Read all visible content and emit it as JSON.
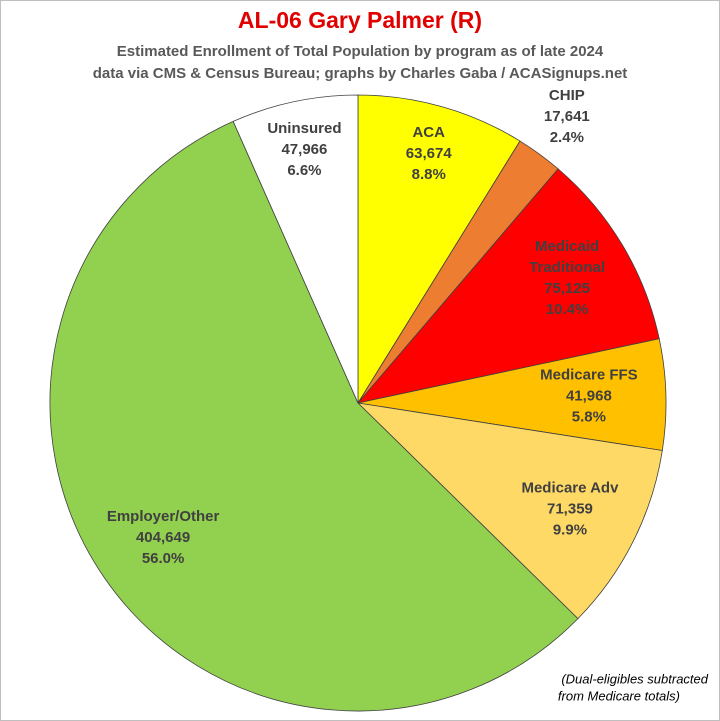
{
  "chart_data": {
    "type": "pie",
    "title": "AL-06 Gary Palmer (R)",
    "subtitle": [
      "Estimated Enrollment of Total Population by program as of late 2024",
      "data via CMS & Census Bureau; graphs by Charles Gaba / ACASignups.net"
    ],
    "categories": [
      "ACA",
      "CHIP",
      "Medicaid Traditional",
      "Medicare FFS",
      "Medicare Adv",
      "Employer/Other",
      "Uninsured"
    ],
    "values": [
      63674,
      17641,
      75125,
      41968,
      71359,
      404649,
      47966
    ],
    "value_labels": [
      "63,674",
      "17,641",
      "75,125",
      "41,968",
      "71,359",
      "404,649",
      "47,966"
    ],
    "percent_labels": [
      "8.8%",
      "2.4%",
      "10.4%",
      "5.8%",
      "9.9%",
      "56.0%",
      "6.6%"
    ],
    "colors": [
      "#ffff00",
      "#ed7d31",
      "#ff0000",
      "#ffc000",
      "#ffd966",
      "#92d050",
      "#ffffff"
    ],
    "annotation": [
      "(Dual-eligibles subtracted",
      "from Medicare totals)"
    ]
  }
}
